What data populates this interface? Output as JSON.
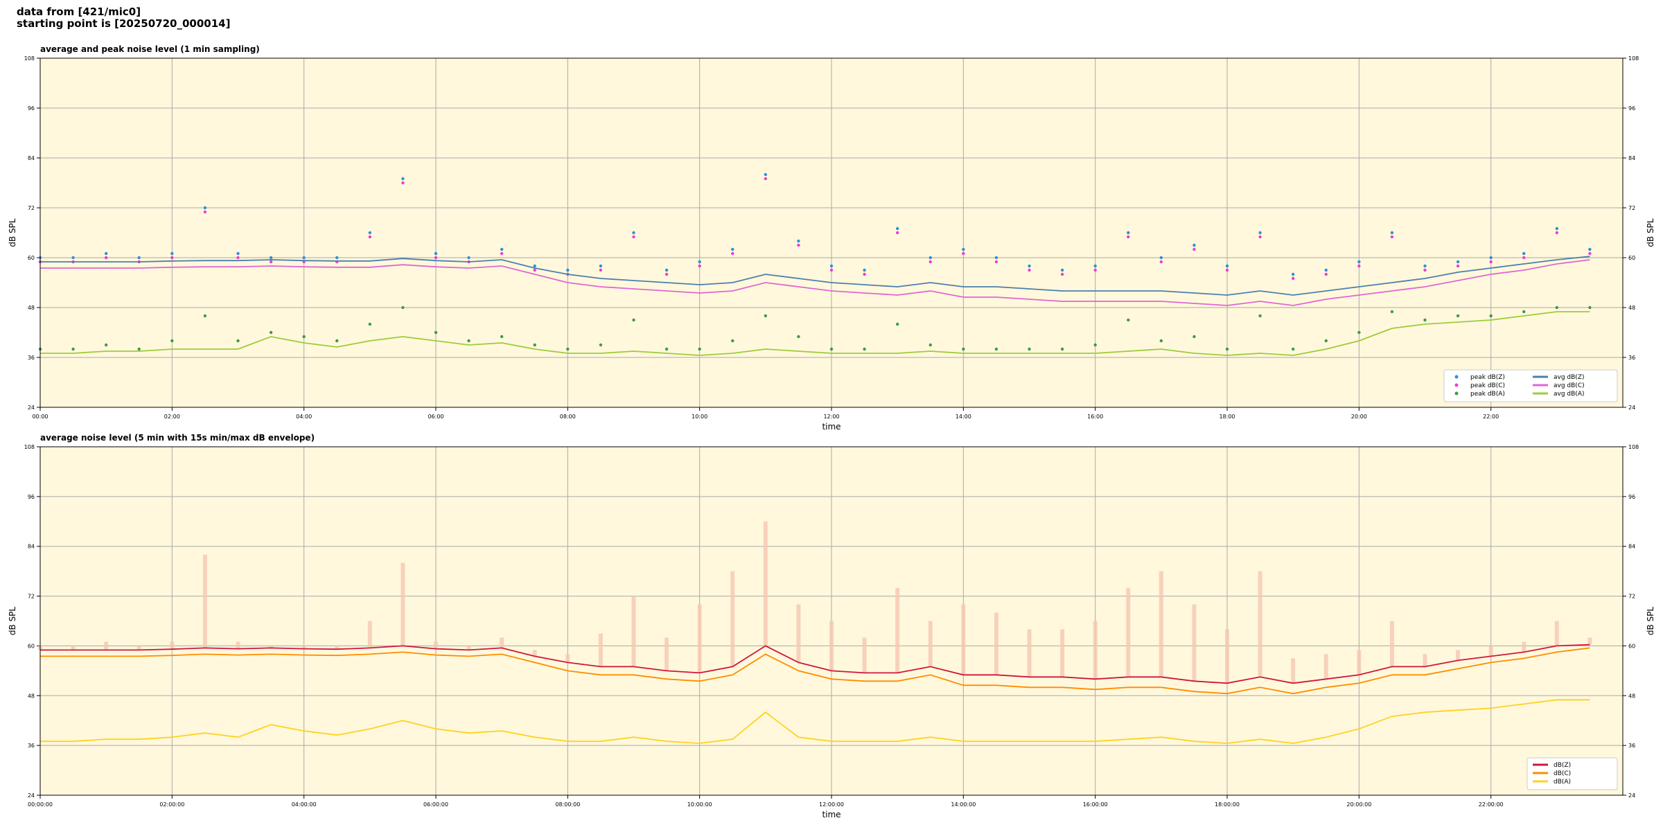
{
  "header": {
    "lines": [
      "data from [421/mic0]",
      "starting point is [20250720_000014]"
    ]
  },
  "chart_data": [
    {
      "type": "line",
      "title": "average and peak noise level (1 min sampling)",
      "x_label": "time",
      "y_label": "dB SPL",
      "xlim": [
        0,
        24
      ],
      "ylim": [
        24,
        108
      ],
      "xticks": [
        {
          "value": 0,
          "label": "00:00"
        },
        {
          "value": 2,
          "label": "02:00"
        },
        {
          "value": 4,
          "label": "04:00"
        },
        {
          "value": 6,
          "label": "06:00"
        },
        {
          "value": 8,
          "label": "08:00"
        },
        {
          "value": 10,
          "label": "10:00"
        },
        {
          "value": 12,
          "label": "12:00"
        },
        {
          "value": 14,
          "label": "14:00"
        },
        {
          "value": 16,
          "label": "16:00"
        },
        {
          "value": 18,
          "label": "18:00"
        },
        {
          "value": 20,
          "label": "20:00"
        },
        {
          "value": 22,
          "label": "22:00"
        }
      ],
      "yticks": [
        24,
        36,
        48,
        60,
        72,
        84,
        96,
        108
      ],
      "grid": true,
      "legend": "lower right",
      "legend_columns": 2,
      "x": [
        0,
        0.5,
        1,
        1.5,
        2,
        2.5,
        3,
        3.5,
        4,
        4.5,
        5,
        5.5,
        6,
        6.5,
        7,
        7.5,
        8,
        8.5,
        9,
        9.5,
        10,
        10.5,
        11,
        11.5,
        12,
        12.5,
        13,
        13.5,
        14,
        14.5,
        15,
        15.5,
        16,
        16.5,
        17,
        17.5,
        18,
        18.5,
        19,
        19.5,
        20,
        20.5,
        21,
        21.5,
        22,
        22.5,
        23,
        23.5
      ],
      "series": [
        {
          "name": "peak dB(Z)",
          "kind": "scatter",
          "color": "#2f8fd6",
          "values": [
            60,
            60,
            61,
            60,
            61,
            72,
            61,
            60,
            60,
            60,
            66,
            79,
            61,
            60,
            62,
            58,
            57,
            58,
            66,
            57,
            59,
            62,
            80,
            64,
            58,
            57,
            67,
            60,
            62,
            60,
            58,
            57,
            58,
            66,
            60,
            63,
            58,
            66,
            56,
            57,
            59,
            66,
            58,
            59,
            60,
            61,
            67,
            62
          ]
        },
        {
          "name": "peak dB(C)",
          "kind": "scatter",
          "color": "#f03cd0",
          "values": [
            59,
            59,
            60,
            59,
            60,
            71,
            60,
            59,
            59,
            59,
            65,
            78,
            60,
            59,
            61,
            57,
            56,
            57,
            65,
            56,
            58,
            61,
            79,
            63,
            57,
            56,
            66,
            59,
            61,
            59,
            57,
            56,
            57,
            65,
            59,
            62,
            57,
            65,
            55,
            56,
            58,
            65,
            57,
            58,
            59,
            60,
            66,
            61
          ]
        },
        {
          "name": "peak dB(A)",
          "kind": "scatter",
          "color": "#3c9a46",
          "values": [
            38,
            38,
            39,
            38,
            40,
            46,
            40,
            42,
            41,
            40,
            44,
            48,
            42,
            40,
            41,
            39,
            38,
            39,
            45,
            38,
            38,
            40,
            46,
            41,
            38,
            38,
            44,
            39,
            38,
            38,
            38,
            38,
            39,
            45,
            40,
            41,
            38,
            46,
            38,
            40,
            42,
            47,
            45,
            46,
            46,
            47,
            48,
            48
          ]
        },
        {
          "name": "avg dB(Z)",
          "kind": "line",
          "color": "#4a7fae",
          "values": [
            59,
            59,
            59,
            59,
            59.2,
            59.3,
            59.3,
            59.5,
            59.3,
            59.2,
            59.2,
            59.8,
            59.3,
            59,
            59.5,
            57.5,
            56,
            55,
            54.5,
            54,
            53.5,
            54,
            56,
            55,
            54,
            53.5,
            53,
            54,
            53,
            53,
            52.5,
            52,
            52,
            52,
            52,
            51.5,
            51,
            52,
            51,
            52,
            53,
            54,
            55,
            56.5,
            57.5,
            58.5,
            59.5,
            60.3
          ]
        },
        {
          "name": "avg dB(C)",
          "kind": "line",
          "color": "#e066d2",
          "values": [
            57.5,
            57.5,
            57.5,
            57.5,
            57.7,
            57.8,
            57.8,
            58,
            57.8,
            57.7,
            57.7,
            58.3,
            57.8,
            57.5,
            58,
            56,
            54,
            53,
            52.5,
            52,
            51.5,
            52,
            54,
            53,
            52,
            51.5,
            51,
            52,
            50.5,
            50.5,
            50,
            49.5,
            49.5,
            49.5,
            49.5,
            49,
            48.5,
            49.5,
            48.5,
            50,
            51,
            52,
            53,
            54.5,
            56,
            57,
            58.5,
            59.5
          ]
        },
        {
          "name": "avg dB(A)",
          "kind": "line",
          "color": "#9ccc3a",
          "values": [
            37,
            37,
            37.5,
            37.5,
            38,
            38,
            38,
            41,
            39.5,
            38.5,
            40,
            41,
            40,
            39,
            39.5,
            38,
            37,
            37,
            37.5,
            37,
            36.5,
            37,
            38,
            37.5,
            37,
            37,
            37,
            37.5,
            37,
            37,
            37,
            37,
            37,
            37.5,
            38,
            37,
            36.5,
            37,
            36.5,
            38,
            40,
            43,
            44,
            44.5,
            45,
            46,
            47,
            47
          ]
        }
      ]
    },
    {
      "type": "line",
      "title": "average noise level (5 min with 15s min/max dB envelope)",
      "x_label": "time",
      "y_label": "dB SPL",
      "xlim": [
        0,
        24
      ],
      "ylim": [
        24,
        108
      ],
      "xticks": [
        {
          "value": 0,
          "label": "00:00:00"
        },
        {
          "value": 2,
          "label": "02:00:00"
        },
        {
          "value": 4,
          "label": "04:00:00"
        },
        {
          "value": 6,
          "label": "06:00:00"
        },
        {
          "value": 8,
          "label": "08:00:00"
        },
        {
          "value": 10,
          "label": "10:00:00"
        },
        {
          "value": 12,
          "label": "12:00:00"
        },
        {
          "value": 14,
          "label": "14:00:00"
        },
        {
          "value": 16,
          "label": "16:00:00"
        },
        {
          "value": 18,
          "label": "18:00:00"
        },
        {
          "value": 20,
          "label": "20:00:00"
        },
        {
          "value": 22,
          "label": "22:00:00"
        }
      ],
      "yticks": [
        24,
        36,
        48,
        60,
        72,
        84,
        96,
        108
      ],
      "grid": true,
      "legend": "lower right",
      "legend_columns": 1,
      "x": [
        0,
        0.5,
        1,
        1.5,
        2,
        2.5,
        3,
        3.5,
        4,
        4.5,
        5,
        5.5,
        6,
        6.5,
        7,
        7.5,
        8,
        8.5,
        9,
        9.5,
        10,
        10.5,
        11,
        11.5,
        12,
        12.5,
        13,
        13.5,
        14,
        14.5,
        15,
        15.5,
        16,
        16.5,
        17,
        17.5,
        18,
        18.5,
        19,
        19.5,
        20,
        20.5,
        21,
        21.5,
        22,
        22.5,
        23,
        23.5
      ],
      "envelope": {
        "color": "#f7c8b4",
        "values": [
          60,
          60,
          61,
          60,
          61,
          82,
          61,
          60,
          60,
          60,
          66,
          80,
          61,
          60,
          62,
          59,
          58,
          63,
          72,
          62,
          70,
          78,
          90,
          70,
          66,
          62,
          74,
          66,
          70,
          68,
          64,
          64,
          66,
          74,
          78,
          70,
          64,
          78,
          57,
          58,
          59,
          66,
          58,
          59,
          60,
          61,
          66,
          62
        ]
      },
      "series": [
        {
          "name": "dB(Z)",
          "kind": "line",
          "color": "#d2143c",
          "values": [
            59,
            59,
            59,
            59,
            59.2,
            59.5,
            59.3,
            59.5,
            59.3,
            59.2,
            59.5,
            60,
            59.3,
            59,
            59.5,
            57.5,
            56,
            55,
            55,
            54,
            53.5,
            55,
            60,
            56,
            54,
            53.5,
            53.5,
            55,
            53,
            53,
            52.5,
            52.5,
            52,
            52.5,
            52.5,
            51.5,
            51,
            52.5,
            51,
            52,
            53,
            55,
            55,
            56.5,
            57.5,
            58.5,
            60,
            60.3
          ]
        },
        {
          "name": "dB(C)",
          "kind": "line",
          "color": "#ff8c00",
          "values": [
            57.5,
            57.5,
            57.5,
            57.5,
            57.7,
            58,
            57.8,
            58,
            57.8,
            57.7,
            58,
            58.5,
            57.8,
            57.5,
            58,
            56,
            54,
            53,
            53,
            52,
            51.5,
            53,
            58,
            54,
            52,
            51.5,
            51.5,
            53,
            50.5,
            50.5,
            50,
            50,
            49.5,
            50,
            50,
            49,
            48.5,
            50,
            48.5,
            50,
            51,
            53,
            53,
            54.5,
            56,
            57,
            58.5,
            59.5
          ]
        },
        {
          "name": "dB(A)",
          "kind": "line",
          "color": "#ffd21e",
          "values": [
            37,
            37,
            37.5,
            37.5,
            38,
            39,
            38,
            41,
            39.5,
            38.5,
            40,
            42,
            40,
            39,
            39.5,
            38,
            37,
            37,
            38,
            37,
            36.5,
            37.5,
            44,
            38,
            37,
            37,
            37,
            38,
            37,
            37,
            37,
            37,
            37,
            37.5,
            38,
            37,
            36.5,
            37.5,
            36.5,
            38,
            40,
            43,
            44,
            44.5,
            45,
            46,
            47,
            47
          ]
        }
      ]
    }
  ]
}
